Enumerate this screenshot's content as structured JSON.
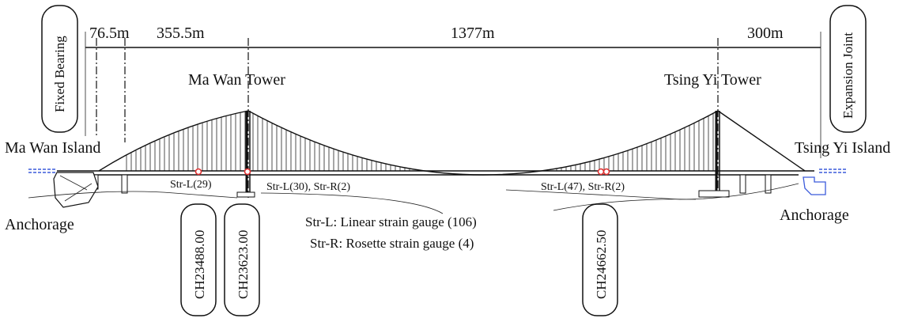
{
  "dimensions": {
    "d1": "76.5m",
    "d2": "355.5m",
    "d3": "1377m",
    "d4": "300m"
  },
  "boxes": {
    "fixed_bearing": "Fixed Bearing",
    "expansion_joint": "Expansion Joint",
    "ch1": "CH23488.00",
    "ch2": "CH23623.00",
    "ch3": "CH24662.50"
  },
  "labels": {
    "ma_wan_tower": "Ma Wan Tower",
    "tsing_yi_tower": "Tsing Yi Tower",
    "ma_wan_island": "Ma Wan Island",
    "tsing_yi_island": "Tsing Yi Island",
    "anchorage_left": "Anchorage",
    "anchorage_right": "Anchorage"
  },
  "sensors": {
    "s1": "Str-L(29)",
    "s2": "Str-L(30), Str-R(2)",
    "s3": "Str-L(47), Str-R(2)"
  },
  "legend": {
    "line1": "Str-L: Linear strain gauge (106)",
    "line2": "Str-R: Rosette strain gauge (4)"
  },
  "colors": {
    "water": "#3b5bdb",
    "gauge": "#e03131",
    "ink": "#111111"
  }
}
